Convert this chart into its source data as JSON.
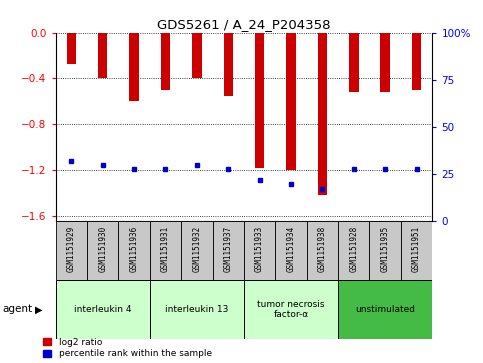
{
  "title": "GDS5261 / A_24_P204358",
  "samples": [
    "GSM1151929",
    "GSM1151930",
    "GSM1151936",
    "GSM1151931",
    "GSM1151932",
    "GSM1151937",
    "GSM1151933",
    "GSM1151934",
    "GSM1151938",
    "GSM1151928",
    "GSM1151935",
    "GSM1151951"
  ],
  "log2_ratio": [
    -0.27,
    -0.4,
    -0.6,
    -0.5,
    -0.4,
    -0.55,
    -1.18,
    -1.2,
    -1.42,
    -0.52,
    -0.52,
    -0.5
  ],
  "percentile": [
    32,
    30,
    28,
    28,
    30,
    28,
    22,
    20,
    17,
    28,
    28,
    28
  ],
  "groups": [
    {
      "label": "interleukin 4",
      "start": 0,
      "end": 3,
      "color": "#ccffcc"
    },
    {
      "label": "interleukin 13",
      "start": 3,
      "end": 6,
      "color": "#ccffcc"
    },
    {
      "label": "tumor necrosis\nfactor-α",
      "start": 6,
      "end": 9,
      "color": "#ccffcc"
    },
    {
      "label": "unstimulated",
      "start": 9,
      "end": 12,
      "color": "#44bb44"
    }
  ],
  "ylim_left": [
    -1.65,
    0.0
  ],
  "ylim_right": [
    0,
    100
  ],
  "bar_color": "#cc0000",
  "dot_color": "#0000cc",
  "bg_color": "#c8c8c8",
  "plot_bg": "#ffffff",
  "left_ticks": [
    0.0,
    -0.4,
    -0.8,
    -1.2,
    -1.6
  ],
  "right_ticks": [
    0,
    25,
    50,
    75,
    100
  ],
  "agent_label": "agent"
}
